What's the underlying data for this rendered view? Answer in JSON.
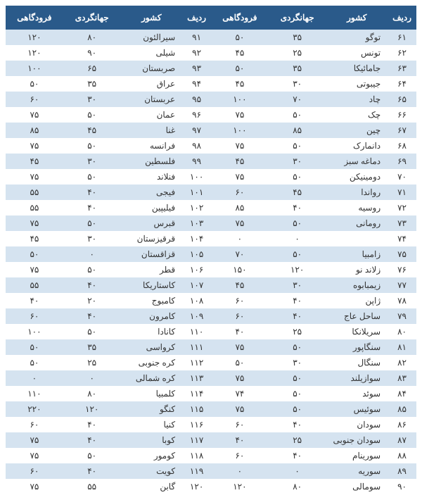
{
  "headers": [
    "ردیف",
    "کشور",
    "جهانگردی",
    "فرودگاهی",
    "ردیف",
    "کشور",
    "جهانگردی",
    "فرودگاهی"
  ],
  "colors": {
    "header_bg": "#2a5a8a",
    "header_fg": "#ffffff",
    "row_even": "#d5e3f0",
    "row_odd": "#ffffff",
    "text": "#333333"
  },
  "font_size": 12,
  "rows": [
    [
      "۶۱",
      "توگو",
      "۳۵",
      "۵۰",
      "۹۱",
      "سیرالئون",
      "۸۰",
      "۱۲۰"
    ],
    [
      "۶۲",
      "تونس",
      "۲۵",
      "۴۵",
      "۹۲",
      "شیلی",
      "۹۰",
      "۱۲۰"
    ],
    [
      "۶۳",
      "جامائیکا",
      "۳۵",
      "۵۰",
      "۹۳",
      "صربستان",
      "۶۵",
      "۱۰۰"
    ],
    [
      "۶۴",
      "جیبوتی",
      "۳۰",
      "۴۵",
      "۹۴",
      "عراق",
      "۳۵",
      "۵۰"
    ],
    [
      "۶۵",
      "چاد",
      "۷۰",
      "۱۰۰",
      "۹۵",
      "عربستان",
      "۳۰",
      "۶۰"
    ],
    [
      "۶۶",
      "چک",
      "۵۰",
      "۷۵",
      "۹۶",
      "عمان",
      "۵۰",
      "۷۵"
    ],
    [
      "۶۷",
      "چین",
      "۸۵",
      "۱۰۰",
      "۹۷",
      "غنا",
      "۴۵",
      "۸۵"
    ],
    [
      "۶۸",
      "دانمارک",
      "۵۰",
      "۷۵",
      "۹۸",
      "فرانسه",
      "۵۰",
      "۷۵"
    ],
    [
      "۶۹",
      "دماغه سبز",
      "۳۰",
      "۴۵",
      "۹۹",
      "فلسطین",
      "۳۰",
      "۴۵"
    ],
    [
      "۷۰",
      "دومینیکن",
      "۵۰",
      "۷۵",
      "۱۰۰",
      "فنلاند",
      "۵۰",
      "۷۵"
    ],
    [
      "۷۱",
      "رواندا",
      "۴۵",
      "۶۰",
      "۱۰۱",
      "فیجی",
      "۴۰",
      "۵۵"
    ],
    [
      "۷۲",
      "روسیه",
      "۴۰",
      "۸۵",
      "۱۰۲",
      "فیلیپین",
      "۴۰",
      "۵۵"
    ],
    [
      "۷۳",
      "رومانی",
      "۵۰",
      "۷۵",
      "۱۰۳",
      "قبرس",
      "۵۰",
      "۷۵"
    ],
    [
      "۷۴",
      "",
      "۰",
      "۰",
      "۱۰۴",
      "قرقیزستان",
      "۳۰",
      "۴۵"
    ],
    [
      "۷۵",
      "زامبیا",
      "۵۰",
      "۷۰",
      "۱۰۵",
      "قزاقستان",
      "۰",
      "۵۰"
    ],
    [
      "۷۶",
      "زلاند نو",
      "۱۲۰",
      "۱۵۰",
      "۱۰۶",
      "قطر",
      "۵۰",
      "۷۵"
    ],
    [
      "۷۷",
      "زیمبابوه",
      "۳۰",
      "۴۵",
      "۱۰۷",
      "کاستاریکا",
      "۴۰",
      "۵۵"
    ],
    [
      "۷۸",
      "ژاپن",
      "۴۰",
      "۶۰",
      "۱۰۸",
      "کامبوج",
      "۲۰",
      "۴۰"
    ],
    [
      "۷۹",
      "ساحل عاج",
      "۴۰",
      "۶۰",
      "۱۰۹",
      "کامرون",
      "۴۰",
      "۶۰"
    ],
    [
      "۸۰",
      "سریلانکا",
      "۲۵",
      "۴۰",
      "۱۱۰",
      "کانادا",
      "۵۰",
      "۱۰۰"
    ],
    [
      "۸۱",
      "سنگاپور",
      "۵۰",
      "۷۵",
      "۱۱۱",
      "کرواسی",
      "۳۵",
      "۵۰"
    ],
    [
      "۸۲",
      "سنگال",
      "۳۰",
      "۵۰",
      "۱۱۲",
      "کره جنوبی",
      "۲۵",
      "۵۰"
    ],
    [
      "۸۳",
      "سوازیلند",
      "۵۰",
      "۷۵",
      "۱۱۳",
      "کره شمالی",
      "۰",
      "۰"
    ],
    [
      "۸۴",
      "سوئد",
      "۵۰",
      "۷۴",
      "۱۱۴",
      "کلمبیا",
      "۸۰",
      "۱۱۰"
    ],
    [
      "۸۵",
      "سوئیس",
      "۵۰",
      "۷۵",
      "۱۱۵",
      "کنگو",
      "۱۲۰",
      "۲۲۰"
    ],
    [
      "۸۶",
      "سودان",
      "۴۰",
      "۶۰",
      "۱۱۶",
      "کنیا",
      "۴۰",
      "۶۰"
    ],
    [
      "۸۷",
      "سودان جنوبی",
      "۲۵",
      "۴۰",
      "۱۱۷",
      "کوبا",
      "۴۰",
      "۷۵"
    ],
    [
      "۸۸",
      "سورینام",
      "۴۰",
      "۶۰",
      "۱۱۸",
      "کومور",
      "۵۰",
      "۷۵"
    ],
    [
      "۸۹",
      "سوریه",
      "۰",
      "۰",
      "۱۱۹",
      "کویت",
      "۴۰",
      "۶۰"
    ],
    [
      "۹۰",
      "سومالی",
      "۸۰",
      "۱۲۰",
      "۱۲۰",
      "گابن",
      "۵۵",
      "۷۵"
    ]
  ]
}
